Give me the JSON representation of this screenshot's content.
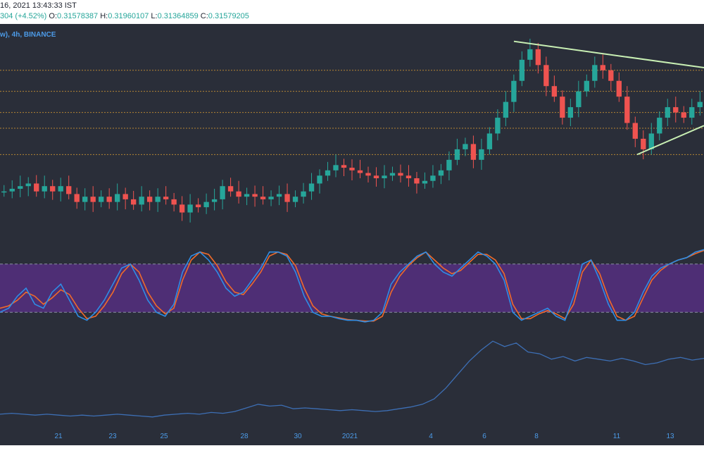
{
  "header": {
    "date_text": "16, 2021 13:43:33 IST",
    "change_text": "304 (+4.52%)",
    "o_label": "O:",
    "o_value": "0.31578387",
    "h_label": "H:",
    "h_value": "0.31960107",
    "l_label": "L:",
    "l_value": "0.31364859",
    "c_label": "C:",
    "c_value": "0.31579205"
  },
  "legend_text": "w), 4h, BINANCE",
  "colors": {
    "background": "#2a2e39",
    "up": "#26a69a",
    "down": "#ef5350",
    "accent": "#4c9be8",
    "stoch_k": "#2e8de6",
    "stoch_d": "#f06a2a",
    "band": "#5b2f8a",
    "trendline": "#c9f0b4",
    "level_line": "#d89a33"
  },
  "chart_data": {
    "type": "candlestick",
    "x_ticks": [
      "21",
      "23",
      "25",
      "28",
      "30",
      "2021",
      "4",
      "6",
      "8",
      "11",
      "13"
    ],
    "price_panel": {
      "levels": [
        0.52,
        0.48,
        0.44,
        0.41,
        0.36
      ],
      "candles_close": [
        0.29,
        0.295,
        0.3,
        0.305,
        0.29,
        0.3,
        0.29,
        0.3,
        0.285,
        0.27,
        0.28,
        0.27,
        0.28,
        0.27,
        0.285,
        0.275,
        0.265,
        0.28,
        0.27,
        0.28,
        0.275,
        0.265,
        0.25,
        0.265,
        0.26,
        0.27,
        0.275,
        0.3,
        0.29,
        0.28,
        0.285,
        0.28,
        0.275,
        0.28,
        0.285,
        0.27,
        0.28,
        0.29,
        0.305,
        0.32,
        0.33,
        0.34,
        0.335,
        0.33,
        0.325,
        0.32,
        0.315,
        0.32,
        0.325,
        0.32,
        0.315,
        0.305,
        0.31,
        0.32,
        0.33,
        0.35,
        0.37,
        0.38,
        0.35,
        0.37,
        0.4,
        0.43,
        0.46,
        0.5,
        0.54,
        0.56,
        0.53,
        0.49,
        0.47,
        0.43,
        0.45,
        0.48,
        0.5,
        0.53,
        0.52,
        0.5,
        0.47,
        0.42,
        0.39,
        0.37,
        0.4,
        0.43,
        0.45,
        0.44,
        0.43,
        0.45,
        0.46
      ],
      "trendline_upper": {
        "from": [
          0.73,
          0.575
        ],
        "to": [
          1.0,
          0.525
        ]
      },
      "trendline_lower": {
        "from": [
          0.905,
          0.36
        ],
        "to": [
          1.0,
          0.415
        ]
      }
    },
    "stoch_rsi": {
      "band_upper": 80,
      "band_lower": 20,
      "k": [
        20,
        25,
        40,
        50,
        30,
        25,
        45,
        55,
        35,
        15,
        10,
        20,
        35,
        55,
        75,
        80,
        60,
        35,
        20,
        15,
        30,
        70,
        90,
        95,
        85,
        70,
        50,
        40,
        45,
        60,
        75,
        95,
        95,
        90,
        70,
        40,
        20,
        15,
        15,
        12,
        10,
        10,
        8,
        10,
        20,
        55,
        70,
        80,
        90,
        95,
        80,
        70,
        65,
        75,
        85,
        95,
        90,
        80,
        60,
        20,
        10,
        15,
        20,
        25,
        15,
        10,
        40,
        80,
        85,
        60,
        30,
        10,
        10,
        20,
        45,
        65,
        75,
        80,
        85,
        88,
        95,
        98
      ],
      "d": [
        25,
        28,
        35,
        45,
        40,
        30,
        38,
        48,
        42,
        25,
        12,
        15,
        28,
        45,
        68,
        80,
        70,
        45,
        28,
        18,
        25,
        60,
        85,
        95,
        92,
        78,
        58,
        45,
        42,
        55,
        70,
        90,
        95,
        92,
        78,
        50,
        28,
        18,
        15,
        13,
        11,
        10,
        9,
        9,
        15,
        45,
        65,
        78,
        88,
        95,
        85,
        75,
        68,
        72,
        82,
        92,
        92,
        85,
        68,
        30,
        12,
        12,
        18,
        22,
        18,
        12,
        30,
        70,
        85,
        68,
        38,
        15,
        10,
        15,
        38,
        60,
        72,
        80,
        85,
        88,
        93,
        97
      ]
    },
    "volume_indicator": {
      "values": [
        0.11,
        0.12,
        0.11,
        0.1,
        0.11,
        0.1,
        0.09,
        0.1,
        0.09,
        0.1,
        0.11,
        0.1,
        0.09,
        0.08,
        0.1,
        0.11,
        0.12,
        0.11,
        0.13,
        0.12,
        0.14,
        0.18,
        0.22,
        0.2,
        0.21,
        0.17,
        0.18,
        0.17,
        0.16,
        0.15,
        0.16,
        0.15,
        0.14,
        0.15,
        0.17,
        0.19,
        0.22,
        0.28,
        0.4,
        0.55,
        0.7,
        0.82,
        0.92,
        0.86,
        0.9,
        0.8,
        0.78,
        0.72,
        0.75,
        0.7,
        0.74,
        0.72,
        0.7,
        0.73,
        0.7,
        0.66,
        0.68,
        0.72,
        0.74,
        0.71,
        0.73
      ]
    }
  }
}
